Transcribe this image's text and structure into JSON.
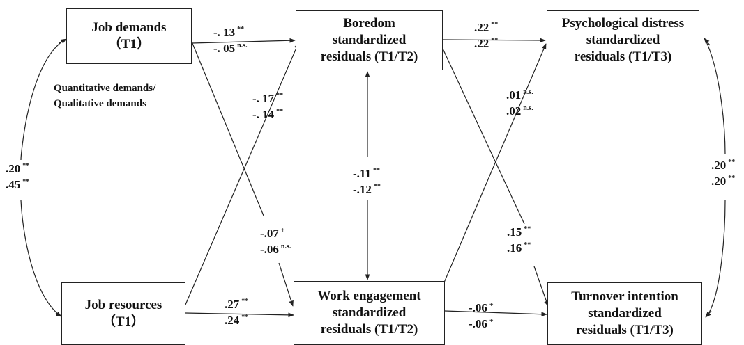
{
  "boxes": {
    "job_demands": {
      "line1": "Job demands",
      "line2": "（T1）"
    },
    "job_resources": {
      "line1": "Job resources",
      "line2": "（T1）"
    },
    "boredom": {
      "line1": "Boredom",
      "line2": "standardized",
      "line3": "residuals (T1/T2)"
    },
    "work_engagement": {
      "line1": "Work engagement",
      "line2": "standardized",
      "line3": "residuals (T1/T2)"
    },
    "psych_distress": {
      "line1": "Psychological distress",
      "line2": "standardized",
      "line3": "residuals (T1/T3)"
    },
    "turnover": {
      "line1": "Turnover intention",
      "line2": "standardized",
      "line3": "residuals (T1/T3)"
    }
  },
  "note": {
    "line1": "Quantitative demands/",
    "line2": "Qualitative demands"
  },
  "paths": {
    "jd_bo": {
      "v1": "-. 13",
      "s1": "**",
      "v2": "-. 05",
      "s2": "n.s."
    },
    "jr_bo": {
      "v1": "-. 17",
      "s1": "**",
      "v2": "-. 14",
      "s2": "**"
    },
    "jd_we": {
      "v1": "-.07",
      "s1": "+",
      "v2": "-.06",
      "s2": "n.s."
    },
    "jr_we": {
      "v1": ".27",
      "s1": "**",
      "v2": ".24",
      "s2": "**"
    },
    "jd_jr": {
      "v1": ".20",
      "s1": "**",
      "v2": ".45",
      "s2": "**"
    },
    "bo_we": {
      "v1": "-.11",
      "s1": "**",
      "v2": "-.12",
      "s2": "**"
    },
    "bo_pd": {
      "v1": ".22",
      "s1": "**",
      "v2": ".22",
      "s2": "**"
    },
    "we_pd": {
      "v1": ".01",
      "s1": "n.s.",
      "v2": ".02",
      "s2": "n.s."
    },
    "bo_to": {
      "v1": ".15",
      "s1": "**",
      "v2": ".16",
      "s2": "**"
    },
    "we_to": {
      "v1": "-.06",
      "s1": "+",
      "v2": "-.06",
      "s2": "+"
    },
    "pd_to": {
      "v1": ".20",
      "s1": "**",
      "v2": ".20",
      "s2": "**"
    }
  }
}
